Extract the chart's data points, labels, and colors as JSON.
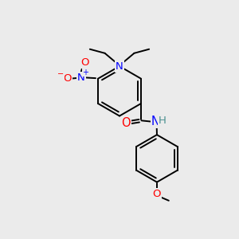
{
  "bg_color": "#ebebeb",
  "bond_color": "#000000",
  "atom_colors": {
    "N": "#0000ff",
    "O": "#ff0000",
    "H": "#4a9090",
    "C": "#000000"
  },
  "lw": 1.4,
  "fontsize": 9.5
}
